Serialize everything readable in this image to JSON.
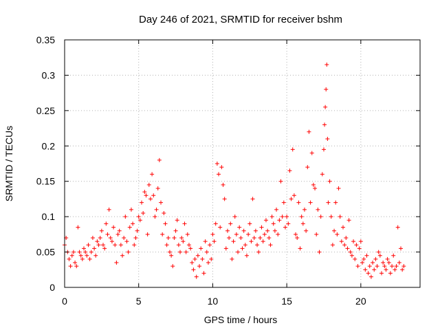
{
  "chart_data": {
    "type": "scatter",
    "title": "Day 246 of 2021, SRMTID for receiver bshm",
    "xlabel": "GPS time / hours",
    "ylabel": "SRMTID / TECUs",
    "xlim": [
      0,
      24
    ],
    "ylim": [
      0,
      0.35
    ],
    "xticks": [
      0,
      5,
      10,
      15,
      20
    ],
    "xtick_labels": [
      "0",
      "5",
      "10",
      "15",
      "20"
    ],
    "yticks": [
      0,
      0.05,
      0.1,
      0.15,
      0.2,
      0.25,
      0.3,
      0.35
    ],
    "ytick_labels": [
      "0",
      "0.05",
      "0.1",
      "0.15",
      "0.2",
      "0.25",
      "0.3",
      "0.35"
    ],
    "grid": true,
    "marker": "+",
    "color": "#ff0000",
    "series": [
      {
        "name": "SRMTID",
        "points": [
          [
            0.0,
            0.06
          ],
          [
            0.1,
            0.07
          ],
          [
            0.2,
            0.05
          ],
          [
            0.3,
            0.04
          ],
          [
            0.4,
            0.03
          ],
          [
            0.5,
            0.045
          ],
          [
            0.6,
            0.05
          ],
          [
            0.7,
            0.035
          ],
          [
            0.8,
            0.03
          ],
          [
            0.9,
            0.085
          ],
          [
            1.0,
            0.05
          ],
          [
            1.1,
            0.045
          ],
          [
            1.2,
            0.04
          ],
          [
            1.3,
            0.055
          ],
          [
            1.4,
            0.05
          ],
          [
            1.5,
            0.045
          ],
          [
            1.6,
            0.06
          ],
          [
            1.7,
            0.04
          ],
          [
            1.8,
            0.05
          ],
          [
            1.9,
            0.07
          ],
          [
            2.0,
            0.055
          ],
          [
            2.1,
            0.045
          ],
          [
            2.2,
            0.065
          ],
          [
            2.3,
            0.06
          ],
          [
            2.4,
            0.07
          ],
          [
            2.5,
            0.08
          ],
          [
            2.6,
            0.06
          ],
          [
            2.7,
            0.055
          ],
          [
            2.8,
            0.09
          ],
          [
            2.9,
            0.075
          ],
          [
            3.0,
            0.11
          ],
          [
            3.1,
            0.07
          ],
          [
            3.2,
            0.065
          ],
          [
            3.3,
            0.085
          ],
          [
            3.4,
            0.06
          ],
          [
            3.5,
            0.035
          ],
          [
            3.6,
            0.075
          ],
          [
            3.7,
            0.08
          ],
          [
            3.8,
            0.06
          ],
          [
            3.9,
            0.045
          ],
          [
            4.0,
            0.07
          ],
          [
            4.1,
            0.1
          ],
          [
            4.2,
            0.065
          ],
          [
            4.3,
            0.05
          ],
          [
            4.4,
            0.085
          ],
          [
            4.5,
            0.11
          ],
          [
            4.6,
            0.09
          ],
          [
            4.7,
            0.06
          ],
          [
            4.8,
            0.07
          ],
          [
            4.9,
            0.08
          ],
          [
            5.0,
            0.1
          ],
          [
            5.1,
            0.095
          ],
          [
            5.2,
            0.12
          ],
          [
            5.3,
            0.105
          ],
          [
            5.4,
            0.135
          ],
          [
            5.5,
            0.13
          ],
          [
            5.6,
            0.075
          ],
          [
            5.7,
            0.145
          ],
          [
            5.8,
            0.125
          ],
          [
            5.9,
            0.16
          ],
          [
            6.0,
            0.13
          ],
          [
            6.1,
            0.1
          ],
          [
            6.2,
            0.11
          ],
          [
            6.3,
            0.14
          ],
          [
            6.4,
            0.18
          ],
          [
            6.5,
            0.12
          ],
          [
            6.6,
            0.075
          ],
          [
            6.7,
            0.105
          ],
          [
            6.8,
            0.09
          ],
          [
            6.9,
            0.06
          ],
          [
            7.0,
            0.07
          ],
          [
            7.1,
            0.05
          ],
          [
            7.2,
            0.045
          ],
          [
            7.3,
            0.03
          ],
          [
            7.4,
            0.07
          ],
          [
            7.5,
            0.08
          ],
          [
            7.6,
            0.095
          ],
          [
            7.7,
            0.06
          ],
          [
            7.8,
            0.05
          ],
          [
            7.9,
            0.07
          ],
          [
            8.0,
            0.065
          ],
          [
            8.1,
            0.09
          ],
          [
            8.2,
            0.05
          ],
          [
            8.3,
            0.075
          ],
          [
            8.4,
            0.06
          ],
          [
            8.5,
            0.055
          ],
          [
            8.6,
            0.035
          ],
          [
            8.7,
            0.025
          ],
          [
            8.8,
            0.04
          ],
          [
            8.9,
            0.015
          ],
          [
            9.0,
            0.045
          ],
          [
            9.1,
            0.03
          ],
          [
            9.2,
            0.055
          ],
          [
            9.3,
            0.04
          ],
          [
            9.4,
            0.02
          ],
          [
            9.5,
            0.065
          ],
          [
            9.6,
            0.05
          ],
          [
            9.7,
            0.035
          ],
          [
            9.8,
            0.06
          ],
          [
            9.9,
            0.04
          ],
          [
            10.0,
            0.075
          ],
          [
            10.1,
            0.065
          ],
          [
            10.2,
            0.09
          ],
          [
            10.3,
            0.175
          ],
          [
            10.4,
            0.16
          ],
          [
            10.5,
            0.085
          ],
          [
            10.6,
            0.17
          ],
          [
            10.7,
            0.145
          ],
          [
            10.8,
            0.125
          ],
          [
            10.9,
            0.055
          ],
          [
            11.0,
            0.08
          ],
          [
            11.1,
            0.07
          ],
          [
            11.2,
            0.09
          ],
          [
            11.3,
            0.04
          ],
          [
            11.4,
            0.065
          ],
          [
            11.5,
            0.1
          ],
          [
            11.6,
            0.075
          ],
          [
            11.7,
            0.05
          ],
          [
            11.8,
            0.085
          ],
          [
            11.9,
            0.07
          ],
          [
            12.0,
            0.055
          ],
          [
            12.1,
            0.08
          ],
          [
            12.2,
            0.06
          ],
          [
            12.3,
            0.045
          ],
          [
            12.4,
            0.075
          ],
          [
            12.5,
            0.09
          ],
          [
            12.6,
            0.065
          ],
          [
            12.7,
            0.125
          ],
          [
            12.8,
            0.07
          ],
          [
            12.9,
            0.08
          ],
          [
            13.0,
            0.06
          ],
          [
            13.1,
            0.05
          ],
          [
            13.2,
            0.07
          ],
          [
            13.3,
            0.085
          ],
          [
            13.4,
            0.065
          ],
          [
            13.5,
            0.075
          ],
          [
            13.6,
            0.095
          ],
          [
            13.7,
            0.08
          ],
          [
            13.8,
            0.07
          ],
          [
            13.9,
            0.06
          ],
          [
            14.0,
            0.1
          ],
          [
            14.1,
            0.09
          ],
          [
            14.2,
            0.08
          ],
          [
            14.3,
            0.11
          ],
          [
            14.4,
            0.075
          ],
          [
            14.5,
            0.095
          ],
          [
            14.6,
            0.15
          ],
          [
            14.7,
            0.1
          ],
          [
            14.8,
            0.12
          ],
          [
            14.9,
            0.085
          ],
          [
            15.0,
            0.1
          ],
          [
            15.1,
            0.09
          ],
          [
            15.2,
            0.165
          ],
          [
            15.3,
            0.125
          ],
          [
            15.4,
            0.195
          ],
          [
            15.5,
            0.13
          ],
          [
            15.6,
            0.075
          ],
          [
            15.7,
            0.07
          ],
          [
            15.8,
            0.12
          ],
          [
            15.9,
            0.055
          ],
          [
            16.0,
            0.1
          ],
          [
            16.1,
            0.09
          ],
          [
            16.2,
            0.11
          ],
          [
            16.3,
            0.08
          ],
          [
            16.4,
            0.17
          ],
          [
            16.5,
            0.22
          ],
          [
            16.6,
            0.12
          ],
          [
            16.7,
            0.19
          ],
          [
            16.8,
            0.145
          ],
          [
            16.9,
            0.14
          ],
          [
            17.0,
            0.075
          ],
          [
            17.1,
            0.11
          ],
          [
            17.2,
            0.05
          ],
          [
            17.3,
            0.1
          ],
          [
            17.4,
            0.16
          ],
          [
            17.5,
            0.195
          ],
          [
            17.55,
            0.23
          ],
          [
            17.6,
            0.255
          ],
          [
            17.65,
            0.28
          ],
          [
            17.7,
            0.315
          ],
          [
            17.75,
            0.21
          ],
          [
            17.8,
            0.12
          ],
          [
            17.9,
            0.15
          ],
          [
            18.0,
            0.1
          ],
          [
            18.1,
            0.06
          ],
          [
            18.2,
            0.08
          ],
          [
            18.3,
            0.12
          ],
          [
            18.4,
            0.075
          ],
          [
            18.5,
            0.14
          ],
          [
            18.6,
            0.1
          ],
          [
            18.7,
            0.065
          ],
          [
            18.8,
            0.085
          ],
          [
            18.9,
            0.06
          ],
          [
            19.0,
            0.07
          ],
          [
            19.1,
            0.055
          ],
          [
            19.2,
            0.095
          ],
          [
            19.3,
            0.05
          ],
          [
            19.4,
            0.045
          ],
          [
            19.5,
            0.065
          ],
          [
            19.6,
            0.04
          ],
          [
            19.7,
            0.06
          ],
          [
            19.8,
            0.03
          ],
          [
            19.9,
            0.055
          ],
          [
            20.0,
            0.065
          ],
          [
            20.1,
            0.035
          ],
          [
            20.2,
            0.04
          ],
          [
            20.3,
            0.025
          ],
          [
            20.4,
            0.045
          ],
          [
            20.5,
            0.02
          ],
          [
            20.6,
            0.03
          ],
          [
            20.7,
            0.015
          ],
          [
            20.8,
            0.035
          ],
          [
            20.9,
            0.025
          ],
          [
            21.0,
            0.04
          ],
          [
            21.1,
            0.03
          ],
          [
            21.2,
            0.05
          ],
          [
            21.3,
            0.045
          ],
          [
            21.4,
            0.02
          ],
          [
            21.5,
            0.035
          ],
          [
            21.6,
            0.03
          ],
          [
            21.7,
            0.025
          ],
          [
            21.8,
            0.04
          ],
          [
            21.9,
            0.035
          ],
          [
            22.0,
            0.02
          ],
          [
            22.1,
            0.03
          ],
          [
            22.2,
            0.045
          ],
          [
            22.3,
            0.025
          ],
          [
            22.4,
            0.03
          ],
          [
            22.5,
            0.085
          ],
          [
            22.6,
            0.035
          ],
          [
            22.7,
            0.055
          ],
          [
            22.8,
            0.025
          ],
          [
            22.9,
            0.03
          ]
        ]
      }
    ]
  }
}
